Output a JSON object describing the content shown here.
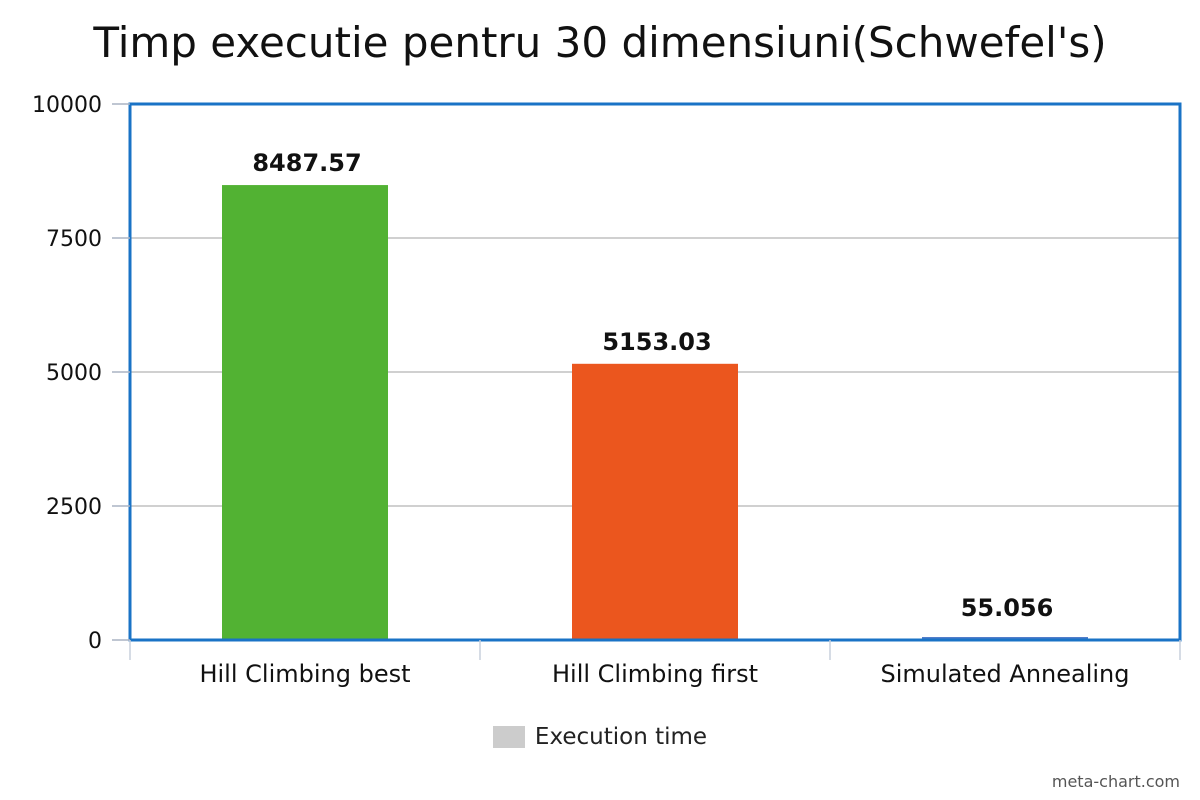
{
  "chart_data": {
    "type": "bar",
    "title": "Timp executie pentru 30 dimensiuni(Schwefel's)",
    "categories": [
      "Hill Climbing best",
      "Hill Climbing first",
      "Simulated Annealing"
    ],
    "series": [
      {
        "name": "Execution time",
        "values": [
          8487.57,
          5153.03,
          55.056
        ]
      }
    ],
    "data_labels": [
      "8487.57",
      "5153.03",
      "55.056"
    ],
    "bar_colors": [
      "#52b233",
      "#eb561e",
      "#4a78c8"
    ],
    "ylim": [
      0,
      10000
    ],
    "yticks": [
      "0",
      "2500",
      "5000",
      "7500",
      "10000"
    ],
    "grid": true,
    "legend_position": "bottom",
    "legend_color": "#cccccc",
    "frame_color": "#1a73c6",
    "grid_color": "#c0c0c0"
  },
  "credit": "meta-chart.com"
}
